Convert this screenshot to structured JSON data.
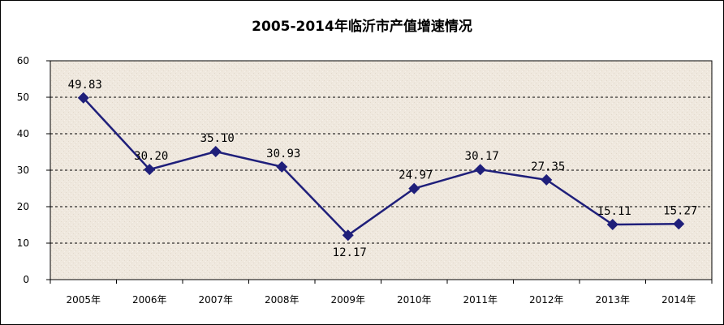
{
  "chart_data": {
    "type": "line",
    "title": "2005-2014年临沂市产值增速情况",
    "xlabel": "",
    "ylabel": "",
    "categories": [
      "2005年",
      "2006年",
      "2007年",
      "2008年",
      "2009年",
      "2010年",
      "2011年",
      "2012年",
      "2013年",
      "2014年"
    ],
    "series": [
      {
        "values": [
          49.83,
          30.2,
          35.1,
          30.93,
          12.17,
          24.97,
          30.17,
          27.35,
          15.11,
          15.27
        ],
        "labels": [
          "49.83",
          "30.20",
          "35.10",
          "30.93",
          "12.17",
          "24.97",
          "30.17",
          "27.35",
          "15.11",
          "15.27"
        ],
        "color": "#1f1f7a"
      }
    ],
    "ylim": [
      0,
      60
    ],
    "yticks": [
      "0",
      "10",
      "20",
      "30",
      "40",
      "50",
      "60"
    ],
    "grid": true,
    "legend": "none",
    "plot_background": "#efe8de"
  }
}
